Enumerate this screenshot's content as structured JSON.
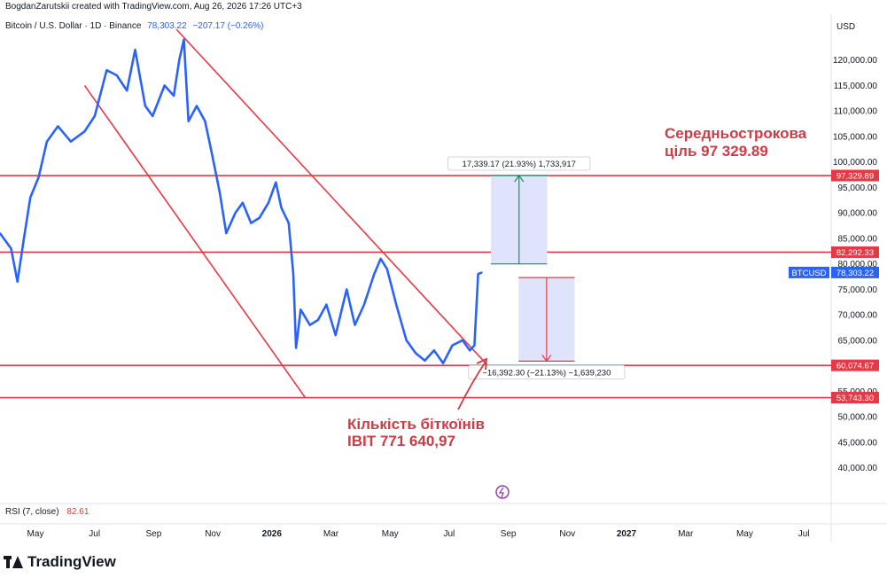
{
  "header": {
    "attribution": "BogdanZarutskii created with TradingView.com, Aug 26, 2026 17:26 UTC+3",
    "symbol": "Bitcoin / U.S. Dollar · 1D · Binance",
    "price": "78,303.22",
    "change": "−207.17 (−0.26%)",
    "currency": "USD"
  },
  "rsi": {
    "label": "RSI (7, close)",
    "value": "82.61"
  },
  "brand": {
    "name": "TradingView"
  },
  "colors": {
    "price_line": "#2962ff",
    "level_line": "#e53945",
    "projection_fill": "#dfe3fb",
    "up_arrow": "#1b8c5f",
    "down_arrow": "#e53945"
  },
  "chart_data": {
    "type": "line",
    "title": "Bitcoin / U.S. Dollar · 1D · Binance",
    "y_axis_ticks": [
      "120,000.00",
      "115,000.00",
      "110,000.00",
      "105,000.00",
      "100,000.00",
      "95,000.00",
      "90,000.00",
      "85,000.00",
      "80,000.00",
      "75,000.00",
      "70,000.00",
      "65,000.00",
      "60,000.00",
      "55,000.00",
      "50,000.00",
      "45,000.00",
      "40,000.00"
    ],
    "ylim": [
      34000,
      129000
    ],
    "x_axis_ticks": [
      "May",
      "Jul",
      "Sep",
      "Nov",
      "2026",
      "Mar",
      "May",
      "Jul",
      "Sep",
      "Nov",
      "2027",
      "Mar",
      "May",
      "Jul"
    ],
    "x_axis_bold": [
      "2026",
      "2027"
    ],
    "xlim": [
      "2025-03-20",
      "2027-09-10"
    ],
    "series": [
      {
        "name": "BTCUSD",
        "x": [
          "2025-03-20",
          "2025-04-01",
          "2025-04-08",
          "2025-04-15",
          "2025-04-22",
          "2025-05-01",
          "2025-05-10",
          "2025-05-22",
          "2025-06-05",
          "2025-06-20",
          "2025-07-01",
          "2025-07-14",
          "2025-07-25",
          "2025-08-05",
          "2025-08-14",
          "2025-08-25",
          "2025-09-02",
          "2025-09-15",
          "2025-09-25",
          "2025-10-01",
          "2025-10-06",
          "2025-10-11",
          "2025-10-20",
          "2025-10-29",
          "2025-11-05",
          "2025-11-14",
          "2025-11-21",
          "2025-12-01",
          "2025-12-09",
          "2025-12-18",
          "2025-12-27",
          "2026-01-06",
          "2026-01-14",
          "2026-01-20",
          "2026-01-28",
          "2026-02-02",
          "2026-02-05",
          "2026-02-10",
          "2026-02-20",
          "2026-03-01",
          "2026-03-10",
          "2026-03-20",
          "2026-04-01",
          "2026-04-10",
          "2026-04-20",
          "2026-05-01",
          "2026-05-08",
          "2026-05-15",
          "2026-05-25",
          "2026-06-05",
          "2026-06-15",
          "2026-06-25",
          "2026-07-05",
          "2026-07-15",
          "2026-07-25",
          "2026-08-05",
          "2026-08-13",
          "2026-08-18",
          "2026-08-22",
          "2026-08-26"
        ],
        "values": [
          86000,
          83000,
          76500,
          85000,
          93000,
          97000,
          104000,
          107000,
          104000,
          106000,
          109000,
          118000,
          117000,
          114000,
          122000,
          111000,
          109000,
          115000,
          113000,
          120000,
          124000,
          108000,
          111000,
          108000,
          102000,
          94000,
          86000,
          90000,
          92000,
          88000,
          89000,
          92000,
          96000,
          91000,
          88000,
          78000,
          63500,
          71000,
          68000,
          69000,
          72000,
          66000,
          75000,
          68000,
          72000,
          78000,
          81000,
          79000,
          72000,
          65000,
          62500,
          61000,
          63000,
          60500,
          64000,
          65000,
          63000,
          64000,
          78000,
          78303.22
        ]
      }
    ],
    "horizontal_levels": [
      97329.89,
      82292.33,
      60074.67,
      53743.3
    ],
    "level_labels": [
      "97,329.89",
      "82,292.33",
      "60,074.67",
      "53,743.30"
    ],
    "current_price_label": {
      "symbol": "BTCUSD",
      "value": "78,303.22"
    },
    "channel_lines": [
      {
        "from": [
          "2025-09-28",
          126000
        ],
        "to": [
          "2026-09-12",
          58000
        ]
      },
      {
        "from": [
          "2025-06-20",
          115000
        ],
        "to": [
          "2026-02-15",
          53743.3
        ]
      }
    ],
    "annotations": [
      {
        "text": "Середньострокова",
        "text2": "ціль 97 329.89"
      },
      {
        "text": "Кількість біткоїнів",
        "text2": "IBIT 771 640,97"
      }
    ],
    "projections": [
      {
        "label": "17,339.17 (21.93%) 1,733,917",
        "x0": "2026-09-05",
        "x1": "2026-11-05",
        "y0": 79990.72,
        "y1": 97329.89
      },
      {
        "label": "−16,392.30 (−21.13%) −1,639,230",
        "x0": "2026-10-05",
        "x1": "2026-12-05",
        "y0": 77300,
        "y1": 60907.7
      }
    ],
    "grid": false,
    "legend": "top-left"
  }
}
